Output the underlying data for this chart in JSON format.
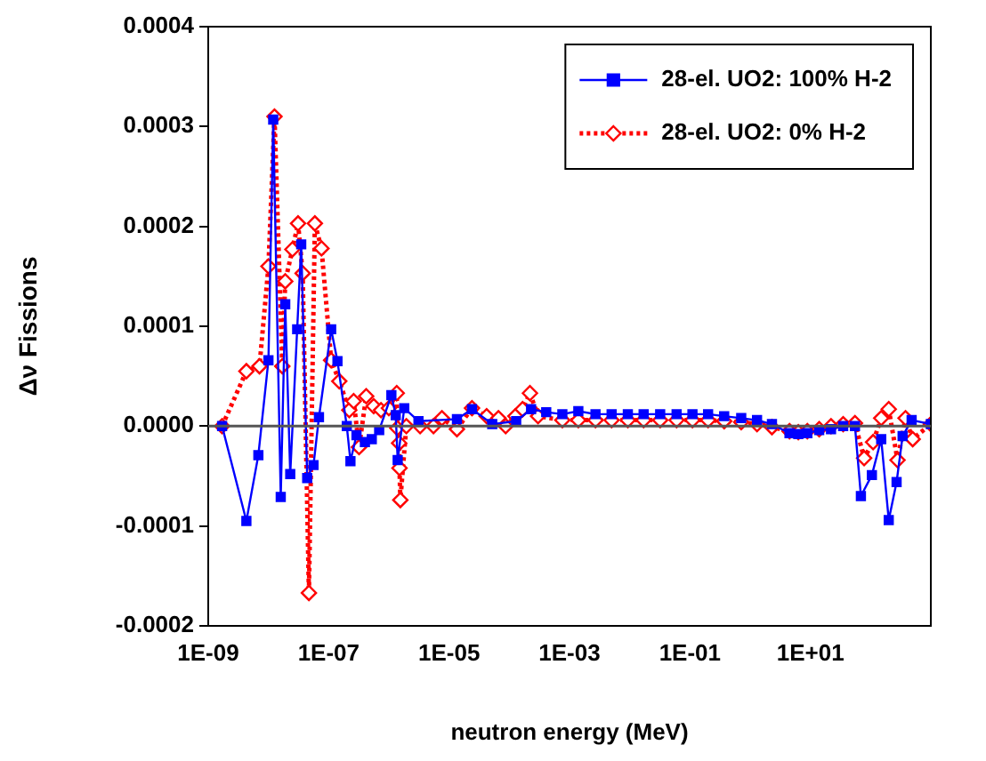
{
  "chart_data": {
    "type": "line",
    "xlabel": "neutron energy (MeV)",
    "ylabel": "Δν Fissions",
    "log": "x",
    "grid": false,
    "legend": "top right",
    "xlim": [
      1e-09,
      1000
    ],
    "xticks": [
      {
        "value": 1e-09,
        "label": "1E-09"
      },
      {
        "value": 1e-07,
        "label": "1E-07"
      },
      {
        "value": 1e-05,
        "label": "1E-05"
      },
      {
        "value": 0.001,
        "label": "1E-03"
      },
      {
        "value": 0.1,
        "label": "1E-01"
      },
      {
        "value": 10,
        "label": "1E+01"
      },
      {
        "value": 1000,
        "label": null
      }
    ],
    "ylim": [
      -0.0002,
      0.0004
    ],
    "yticks": [
      {
        "value": -0.0002,
        "label": "-0.0002"
      },
      {
        "value": -0.0001,
        "label": "-0.0001"
      },
      {
        "value": 0,
        "label": "0.0000"
      },
      {
        "value": 0.0001,
        "label": "0.0001"
      },
      {
        "value": 0.0002,
        "label": "0.0002"
      },
      {
        "value": 0.0003,
        "label": "0.0003"
      },
      {
        "value": 0.0004,
        "label": "0.0004"
      }
    ],
    "ref_lines": [
      {
        "axis": "y",
        "value": 0,
        "color": "#555555"
      }
    ],
    "series": [
      {
        "name": "28-el. UO2: 100% H-2",
        "color": "#0000ff",
        "marker": "square",
        "line_style": "solid",
        "x": [
          1.7e-09,
          4.3e-09,
          6.8e-09,
          1e-08,
          1.2e-08,
          1.6e-08,
          1.9e-08,
          2.3e-08,
          3e-08,
          3.5e-08,
          4.4e-08,
          5.6e-08,
          6.9e-08,
          1.1e-07,
          1.4e-07,
          2e-07,
          2.3e-07,
          2.9e-07,
          4e-07,
          5.2e-07,
          6.9e-07,
          1.1e-06,
          1.3e-06,
          1.4e-06,
          1.8e-06,
          3.1e-06,
          1.35e-05,
          2.4e-05,
          5.2e-05,
          0.00013,
          0.00023,
          0.00041,
          0.00076,
          0.0014,
          0.0027,
          0.005,
          0.0093,
          0.017,
          0.032,
          0.06,
          0.11,
          0.2,
          0.37,
          0.71,
          1.3,
          2.3,
          4.5,
          6.3,
          8.9,
          14,
          22,
          35,
          55,
          69,
          105,
          150,
          200,
          270,
          340,
          480,
          1000
        ],
        "values": [
          0,
          -9.5e-05,
          -2.9e-05,
          6.6e-05,
          0.000307,
          -7.1e-05,
          0.000122,
          -4.8e-05,
          9.7e-05,
          0.000182,
          -5.2e-05,
          -3.9e-05,
          9e-06,
          9.7e-05,
          6.5e-05,
          0,
          -3.5e-05,
          -9e-06,
          -1.6e-05,
          -1.3e-05,
          -4e-06,
          3.1e-05,
          1.1e-05,
          -3.4e-05,
          1.8e-05,
          5e-06,
          7e-06,
          1.7e-05,
          2e-06,
          5e-06,
          1.7e-05,
          1.4e-05,
          1.2e-05,
          1.5e-05,
          1.2e-05,
          1.2e-05,
          1.2e-05,
          1.2e-05,
          1.2e-05,
          1.2e-05,
          1.2e-05,
          1.2e-05,
          1e-05,
          8e-06,
          6e-06,
          2e-06,
          -7e-06,
          -8e-06,
          -7e-06,
          -4e-06,
          -3e-06,
          0,
          0,
          -7e-05,
          -4.9e-05,
          -1.3e-05,
          -9.4e-05,
          -5.6e-05,
          -1e-05,
          6e-06,
          2e-06
        ]
      },
      {
        "name": "28-el. UO2: 0% H-2",
        "color": "#ff0000",
        "marker": "diamond",
        "line_style": "dotted",
        "x": [
          1.7e-09,
          4.3e-09,
          7.1e-09,
          1e-08,
          1.26e-08,
          1.7e-08,
          1.9e-08,
          2.5e-08,
          3.1e-08,
          3.7e-08,
          4.7e-08,
          5.9e-08,
          7.6e-08,
          1.1e-07,
          1.5e-07,
          2.2e-07,
          2.6e-07,
          3.2e-07,
          4.2e-07,
          5.6e-07,
          7.4e-07,
          1e-06,
          1.35e-06,
          1.38e-06,
          1.48e-06,
          1.5e-06,
          1.55e-06,
          1.95e-06,
          3.3e-06,
          5.5e-06,
          7.6e-06,
          1.35e-05,
          2.4e-05,
          4.2e-05,
          6.6e-05,
          8.7e-05,
          0.000126,
          0.000166,
          0.00022,
          0.0003,
          0.00076,
          0.0014,
          0.0027,
          0.005,
          0.0093,
          0.017,
          0.032,
          0.06,
          0.11,
          0.2,
          0.37,
          0.71,
          1.3,
          2.3,
          4.5,
          6.3,
          8.9,
          14,
          22,
          35,
          55,
          78,
          110,
          150,
          200,
          280,
          380,
          500,
          1000
        ],
        "values": [
          0,
          5.5e-05,
          6e-05,
          0.00016,
          0.00031,
          6e-05,
          0.000145,
          0.000177,
          0.000203,
          0.000153,
          -0.000167,
          0.000203,
          0.000178,
          6.6e-05,
          4.5e-05,
          1.6e-05,
          2.5e-05,
          -2.1e-05,
          3e-05,
          2e-05,
          1.6e-05,
          1.8e-05,
          3.3e-05,
          -2e-06,
          -1.7e-05,
          -4.2e-05,
          -7.4e-05,
          0,
          0,
          0,
          8e-06,
          -3e-06,
          1.8e-05,
          1e-05,
          8e-06,
          0,
          1e-05,
          1.7e-05,
          3.3e-05,
          1e-05,
          6e-06,
          6e-06,
          6e-06,
          6e-06,
          6e-06,
          6e-06,
          6e-06,
          6e-06,
          6e-06,
          6e-06,
          5e-06,
          4e-06,
          2e-06,
          -1e-06,
          -5e-06,
          -6e-06,
          -5e-06,
          -3e-06,
          0,
          2e-06,
          3e-06,
          -3.2e-05,
          -1.6e-05,
          8e-06,
          1.7e-05,
          -3.4e-05,
          8e-06,
          -1.3e-05,
          2e-06
        ]
      }
    ]
  }
}
